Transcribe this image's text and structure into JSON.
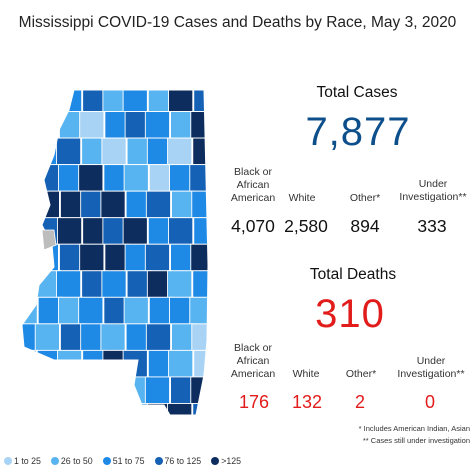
{
  "title": "Mississippi COVID-19 Cases and Deaths by Race, May 3, 2020",
  "cases": {
    "heading": "Total Cases",
    "total": "7,877",
    "categories": [
      {
        "label": "Black or African American",
        "value": "4,070"
      },
      {
        "label": "White",
        "value": "2,580"
      },
      {
        "label": "Other*",
        "value": "894"
      },
      {
        "label": "Under Investigation**",
        "value": "333"
      }
    ]
  },
  "deaths": {
    "heading": "Total Deaths",
    "total": "310",
    "categories": [
      {
        "label": "Black or African American",
        "value": "176"
      },
      {
        "label": "White",
        "value": "132"
      },
      {
        "label": "Other*",
        "value": "2"
      },
      {
        "label": "Under Investigation**",
        "value": "0"
      }
    ]
  },
  "footnotes": {
    "f1": "* Includes American Indian, Asian",
    "f2": "** Cases still under investigation"
  },
  "legend": [
    {
      "label": "1 to 25",
      "color": "#a9d3f5"
    },
    {
      "label": "26 to 50",
      "color": "#58b4f0"
    },
    {
      "label": "51 to 75",
      "color": "#1e8ae6"
    },
    {
      "label": "76 to 125",
      "color": "#1561b5"
    },
    {
      "label": ">125",
      "color": "#0d2d5e"
    }
  ],
  "colors": {
    "cases_total": "#0d4f8b",
    "deaths_total": "#e21b1b"
  }
}
